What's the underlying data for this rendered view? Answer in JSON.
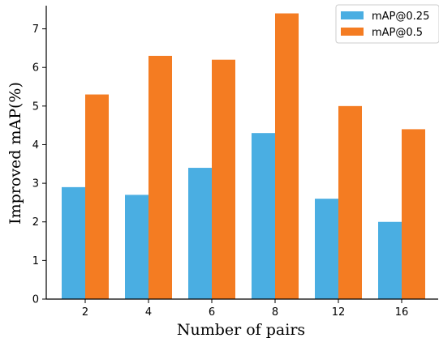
{
  "chart_data": {
    "type": "bar",
    "categories": [
      "2",
      "4",
      "6",
      "8",
      "12",
      "16"
    ],
    "series": [
      {
        "name": "mAP@0.25",
        "values": [
          2.9,
          2.7,
          3.4,
          4.3,
          2.6,
          2.0
        ],
        "color": "#4aaee2"
      },
      {
        "name": "mAP@0.5",
        "values": [
          5.3,
          6.3,
          6.2,
          7.4,
          5.0,
          4.4
        ],
        "color": "#f47c22"
      }
    ],
    "title": "",
    "xlabel": "Number of pairs",
    "ylabel": "Improved mAP(%)",
    "ylim": [
      0,
      7.6
    ],
    "yticks": [
      0,
      1,
      2,
      3,
      4,
      5,
      6,
      7
    ],
    "grid": false,
    "legend_position": "top-right"
  }
}
